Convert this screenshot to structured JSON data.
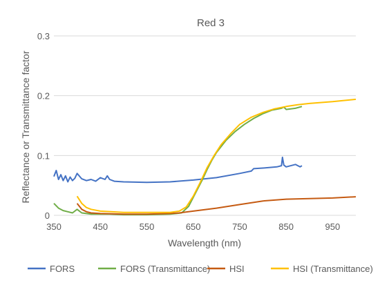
{
  "chart_data": {
    "type": "line",
    "title": "Red 3",
    "xlabel": "Wavelength (nm)",
    "ylabel": "Reflectance or Transmittance factor",
    "xlim": [
      350,
      1000
    ],
    "ylim": [
      0,
      0.3
    ],
    "xticks": [
      "350",
      "450",
      "550",
      "650",
      "750",
      "850",
      "950"
    ],
    "yticks": [
      "0",
      "0.1",
      "0.2",
      "0.3"
    ],
    "grid": "horizontal",
    "legend_position": "bottom",
    "colors": {
      "FORS": "#4472C4",
      "FORS (Transmittance)": "#70AD47",
      "HSI": "#C55A11",
      "HSI (Transmittance)": "#FFC000",
      "axis": "#D9D9D9",
      "text": "#595959"
    },
    "series": [
      {
        "name": "FORS",
        "x": [
          350,
          355,
          360,
          365,
          370,
          375,
          380,
          385,
          390,
          395,
          400,
          410,
          420,
          430,
          440,
          450,
          460,
          465,
          470,
          480,
          500,
          550,
          600,
          650,
          700,
          750,
          775,
          780,
          800,
          830,
          840,
          842,
          845,
          850,
          870,
          880,
          884
        ],
        "y": [
          0.065,
          0.075,
          0.06,
          0.068,
          0.058,
          0.066,
          0.056,
          0.064,
          0.058,
          0.062,
          0.07,
          0.061,
          0.058,
          0.06,
          0.057,
          0.063,
          0.06,
          0.066,
          0.06,
          0.057,
          0.056,
          0.055,
          0.056,
          0.059,
          0.063,
          0.07,
          0.074,
          0.078,
          0.079,
          0.081,
          0.083,
          0.097,
          0.084,
          0.081,
          0.085,
          0.081,
          0.083
        ]
      },
      {
        "name": "FORS (Transmittance)",
        "x": [
          350,
          360,
          370,
          380,
          390,
          400,
          410,
          420,
          430,
          450,
          470,
          500,
          550,
          600,
          625,
          640,
          650,
          660,
          670,
          680,
          690,
          700,
          720,
          740,
          760,
          780,
          800,
          820,
          840,
          845,
          850,
          870,
          884
        ],
        "y": [
          0.02,
          0.012,
          0.008,
          0.006,
          0.004,
          0.01,
          0.004,
          0.003,
          0.002,
          0.002,
          0.002,
          0.001,
          0.001,
          0.002,
          0.004,
          0.015,
          0.03,
          0.045,
          0.06,
          0.077,
          0.092,
          0.105,
          0.125,
          0.14,
          0.152,
          0.162,
          0.17,
          0.176,
          0.179,
          0.181,
          0.177,
          0.179,
          0.182
        ]
      },
      {
        "name": "HSI",
        "x": [
          400,
          410,
          420,
          430,
          450,
          500,
          550,
          600,
          620,
          650,
          700,
          750,
          800,
          850,
          900,
          950,
          1000
        ],
        "y": [
          0.02,
          0.01,
          0.006,
          0.004,
          0.003,
          0.002,
          0.002,
          0.003,
          0.004,
          0.007,
          0.012,
          0.018,
          0.024,
          0.027,
          0.028,
          0.029,
          0.031
        ]
      },
      {
        "name": "HSI (Transmittance)",
        "x": [
          400,
          410,
          420,
          430,
          450,
          500,
          550,
          600,
          620,
          635,
          650,
          665,
          680,
          695,
          710,
          730,
          750,
          775,
          800,
          825,
          850,
          875,
          900,
          950,
          1000
        ],
        "y": [
          0.032,
          0.02,
          0.013,
          0.01,
          0.007,
          0.005,
          0.005,
          0.005,
          0.007,
          0.014,
          0.032,
          0.055,
          0.08,
          0.1,
          0.118,
          0.136,
          0.152,
          0.164,
          0.172,
          0.178,
          0.182,
          0.185,
          0.187,
          0.19,
          0.194
        ]
      }
    ]
  }
}
